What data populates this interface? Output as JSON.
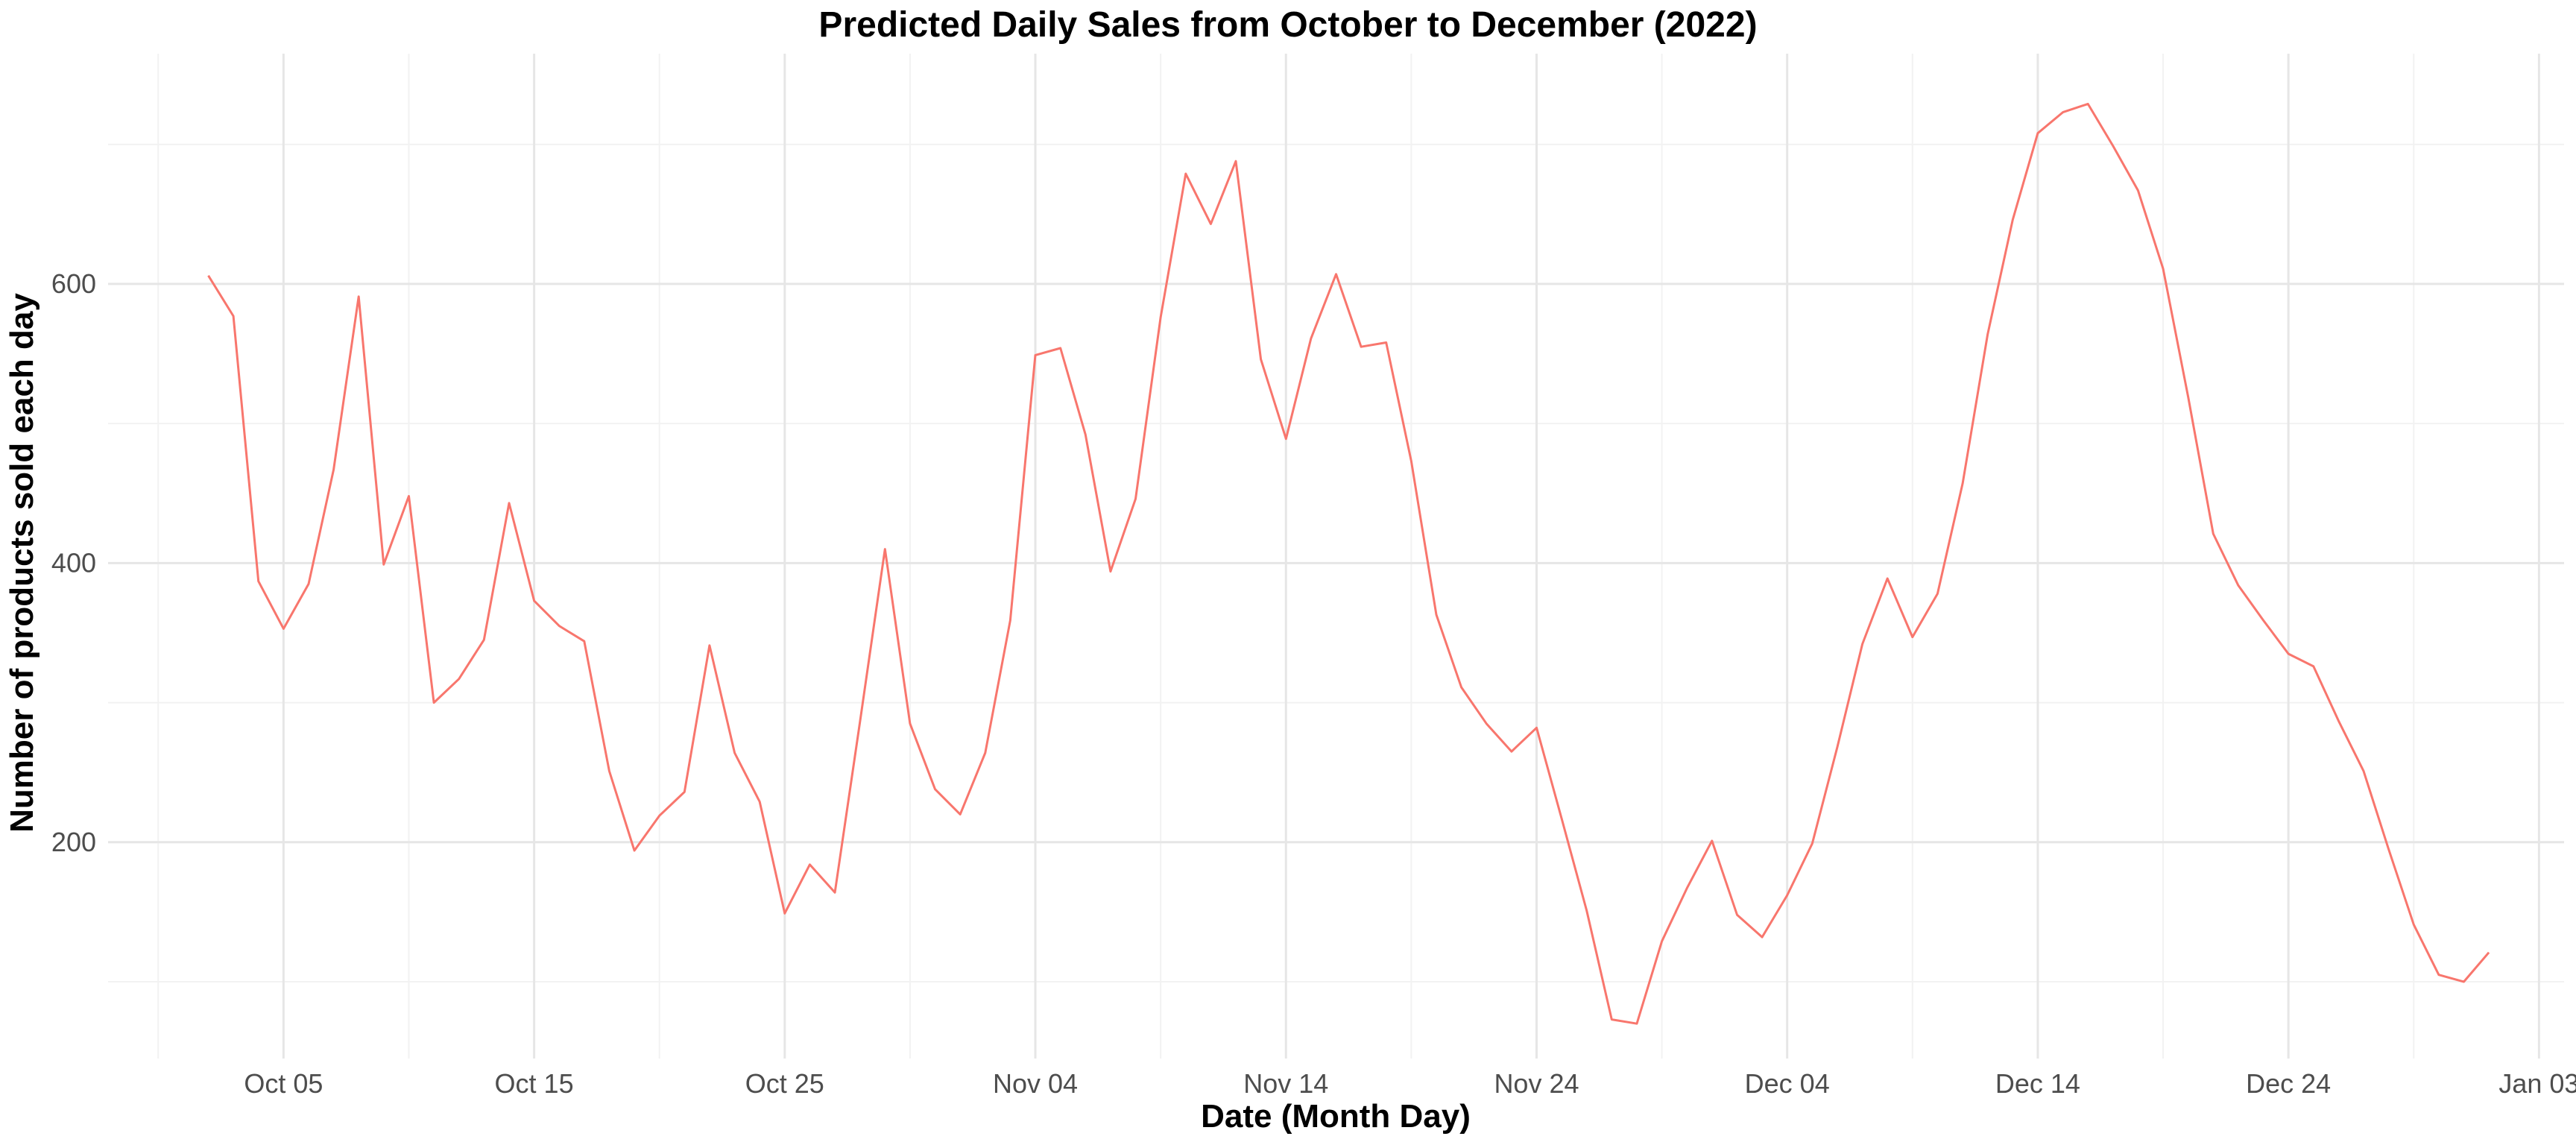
{
  "chart_data": {
    "type": "line",
    "title": "Predicted Daily Sales from October to December (2022)",
    "xlabel": "Date (Month Day)",
    "ylabel": "Number of products sold each day",
    "x_start": "2022-10-02",
    "x_ticks": [
      {
        "date": "2022-10-05",
        "label": "Oct 05"
      },
      {
        "date": "2022-10-15",
        "label": "Oct 15"
      },
      {
        "date": "2022-10-25",
        "label": "Oct 25"
      },
      {
        "date": "2022-11-04",
        "label": "Nov 04"
      },
      {
        "date": "2022-11-14",
        "label": "Nov 14"
      },
      {
        "date": "2022-11-24",
        "label": "Nov 24"
      },
      {
        "date": "2022-12-04",
        "label": "Dec 04"
      },
      {
        "date": "2022-12-14",
        "label": "Dec 14"
      },
      {
        "date": "2022-12-24",
        "label": "Dec 24"
      },
      {
        "date": "2023-01-03",
        "label": "Jan 03"
      }
    ],
    "y_ticks": [
      200,
      400,
      600
    ],
    "ylim": [
      45,
      765
    ],
    "xlim": [
      "2022-09-28",
      "2023-01-04"
    ],
    "grid": true,
    "line_color": "#F8766D",
    "series": [
      {
        "values": [
          606,
          577,
          387,
          353,
          385,
          467,
          591,
          399,
          448,
          300,
          317,
          345,
          443,
          373,
          355,
          344,
          251,
          194,
          219,
          236,
          341,
          264,
          229,
          149,
          184,
          164,
          286,
          410,
          285,
          238,
          220,
          264,
          359,
          549,
          554,
          492,
          394,
          446,
          576,
          679,
          643,
          688,
          546,
          489,
          561,
          607,
          555,
          558,
          473,
          363,
          311,
          285,
          265,
          282,
          217,
          151,
          73,
          70,
          129,
          167,
          201,
          148,
          132,
          162,
          199,
          268,
          342,
          389,
          347,
          378,
          457,
          564,
          646,
          708,
          723,
          729,
          699,
          667,
          611,
          519,
          421,
          384,
          359,
          335,
          326,
          287,
          251,
          195,
          141,
          105,
          100,
          121
        ]
      }
    ]
  }
}
